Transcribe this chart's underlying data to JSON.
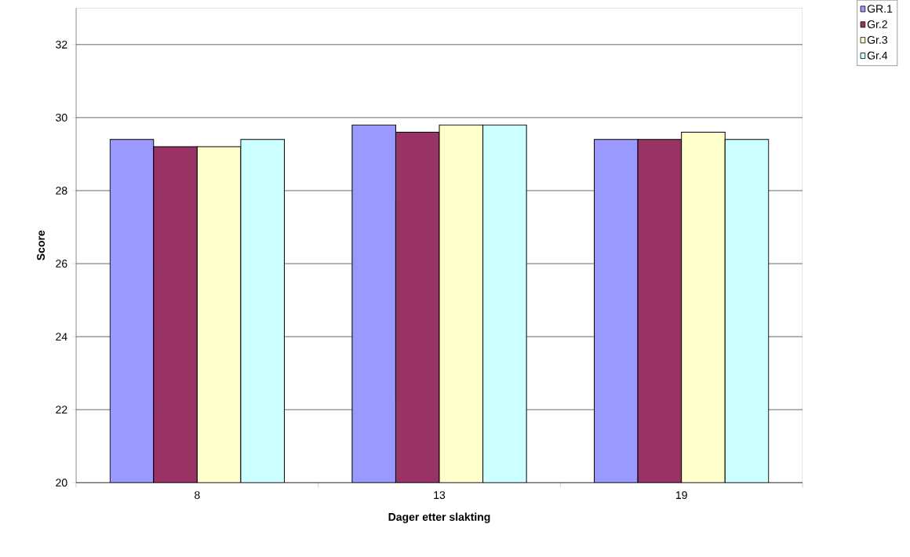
{
  "chart_data": {
    "type": "bar",
    "xlabel": "Dager etter slakting",
    "ylabel": "Score",
    "categories": [
      "8",
      "13",
      "19"
    ],
    "series": [
      {
        "name": "GR.1",
        "color": "#9999ff",
        "values": [
          29.4,
          29.8,
          29.4
        ]
      },
      {
        "name": "Gr.2",
        "color": "#993366",
        "values": [
          29.2,
          29.6,
          29.4
        ]
      },
      {
        "name": "Gr.3",
        "color": "#ffffcc",
        "values": [
          29.2,
          29.8,
          29.6
        ]
      },
      {
        "name": "Gr.4",
        "color": "#ccffff",
        "values": [
          29.4,
          29.8,
          29.4
        ]
      }
    ],
    "ylim": [
      20,
      33
    ],
    "yticks": [
      20,
      22,
      24,
      26,
      28,
      30,
      32
    ],
    "grid": "y",
    "legend": "top right"
  }
}
